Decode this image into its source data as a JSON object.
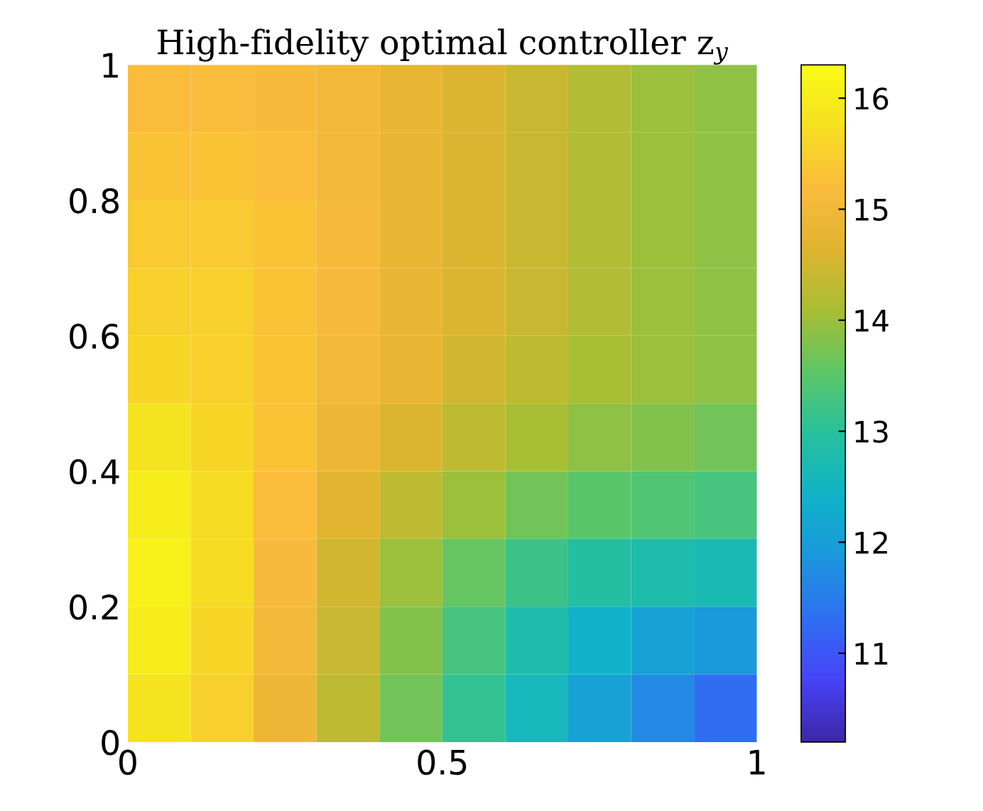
{
  "chart_data": {
    "type": "heatmap",
    "title": "High-fidelity optimal controller z$_{y}$",
    "x": [
      0.05,
      0.15,
      0.25,
      0.35,
      0.45,
      0.55,
      0.65,
      0.75,
      0.85,
      0.95
    ],
    "y": [
      0.95,
      0.85,
      0.75,
      0.65,
      0.55,
      0.45,
      0.35,
      0.25,
      0.15,
      0.05
    ],
    "cells": [
      [
        15.2,
        15.2,
        15.1,
        15.0,
        14.8,
        14.6,
        14.4,
        14.2,
        14.0,
        13.9
      ],
      [
        15.3,
        15.3,
        15.2,
        15.0,
        14.8,
        14.6,
        14.4,
        14.2,
        14.0,
        13.9
      ],
      [
        15.4,
        15.4,
        15.3,
        15.1,
        14.8,
        14.6,
        14.4,
        14.2,
        14.0,
        13.9
      ],
      [
        15.5,
        15.5,
        15.3,
        15.1,
        14.8,
        14.6,
        14.4,
        14.2,
        14.0,
        13.9
      ],
      [
        15.6,
        15.5,
        15.3,
        15.0,
        14.8,
        14.5,
        14.3,
        14.1,
        14.0,
        13.9
      ],
      [
        15.8,
        15.6,
        15.3,
        14.9,
        14.6,
        14.3,
        14.1,
        13.9,
        13.8,
        13.7
      ],
      [
        16.0,
        15.7,
        15.2,
        14.7,
        14.3,
        14.0,
        13.7,
        13.5,
        13.4,
        13.3
      ],
      [
        16.1,
        15.7,
        15.1,
        14.5,
        14.0,
        13.6,
        13.2,
        12.9,
        12.8,
        12.7
      ],
      [
        16.0,
        15.6,
        15.0,
        14.4,
        13.8,
        13.3,
        12.8,
        12.4,
        12.1,
        11.9
      ],
      [
        15.8,
        15.5,
        14.9,
        14.3,
        13.7,
        13.1,
        12.6,
        12.1,
        11.7,
        11.3
      ]
    ],
    "xlim": [
      0,
      1
    ],
    "xticks": [
      0,
      0.5,
      1
    ],
    "ylim": [
      0,
      1
    ],
    "yticks": [
      0,
      0.2,
      0.4,
      0.6,
      0.8,
      1
    ],
    "clim": [
      10.2,
      16.3
    ],
    "cticks": [
      11,
      12,
      13,
      14,
      15,
      16
    ]
  }
}
